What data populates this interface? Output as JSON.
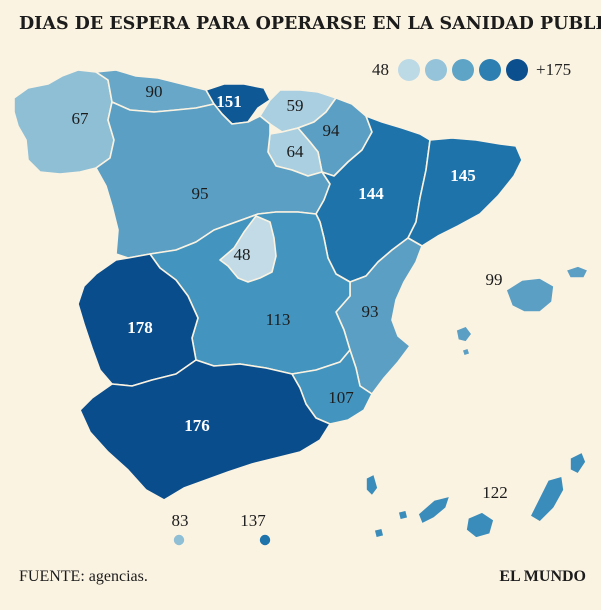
{
  "title": "DIAS DE ESPERA PARA OPERARSE EN LA SANIDAD PUBLICA",
  "legend": {
    "min_label": "48",
    "max_label": "+175",
    "colors": [
      "#bcd9e6",
      "#95c3d9",
      "#5da4c6",
      "#2c7fb0",
      "#0c4f8f"
    ]
  },
  "source": "FUENTE: agencias.",
  "brand": "EL MUNDO",
  "regions": [
    {
      "name": "Galicia",
      "value": "67",
      "color": "#8fbfd5"
    },
    {
      "name": "Asturias",
      "value": "90",
      "color": "#68a7c8"
    },
    {
      "name": "Cantabria",
      "value": "151",
      "color": "#0e5896"
    },
    {
      "name": "País Vasco",
      "value": "59",
      "color": "#a9cfe0"
    },
    {
      "name": "Navarra",
      "value": "94",
      "color": "#5c9fc4"
    },
    {
      "name": "La Rioja",
      "value": "64",
      "color": "#a9cfe0"
    },
    {
      "name": "Castilla y León",
      "value": "95",
      "color": "#5c9fc4"
    },
    {
      "name": "Aragón",
      "value": "144",
      "color": "#1e73ab"
    },
    {
      "name": "Cataluña",
      "value": "145",
      "color": "#1e73ab"
    },
    {
      "name": "Madrid",
      "value": "48",
      "color": "#c2dbe6"
    },
    {
      "name": "Castilla-La Mancha",
      "value": "113",
      "color": "#4394be"
    },
    {
      "name": "Comunidad Valenciana",
      "value": "93",
      "color": "#5c9fc4"
    },
    {
      "name": "Extremadura",
      "value": "178",
      "color": "#0a4d8c"
    },
    {
      "name": "Andalucía",
      "value": "176",
      "color": "#0a4d8c"
    },
    {
      "name": "Murcia",
      "value": "107",
      "color": "#4394be"
    },
    {
      "name": "Baleares",
      "value": "99",
      "color": "#5c9fc4"
    },
    {
      "name": "Canarias",
      "value": "122",
      "color": "#3a8dbb"
    },
    {
      "name": "Ceuta",
      "value": "83",
      "color": "#8fbfd5"
    },
    {
      "name": "Melilla",
      "value": "137",
      "color": "#1e73ab"
    }
  ]
}
